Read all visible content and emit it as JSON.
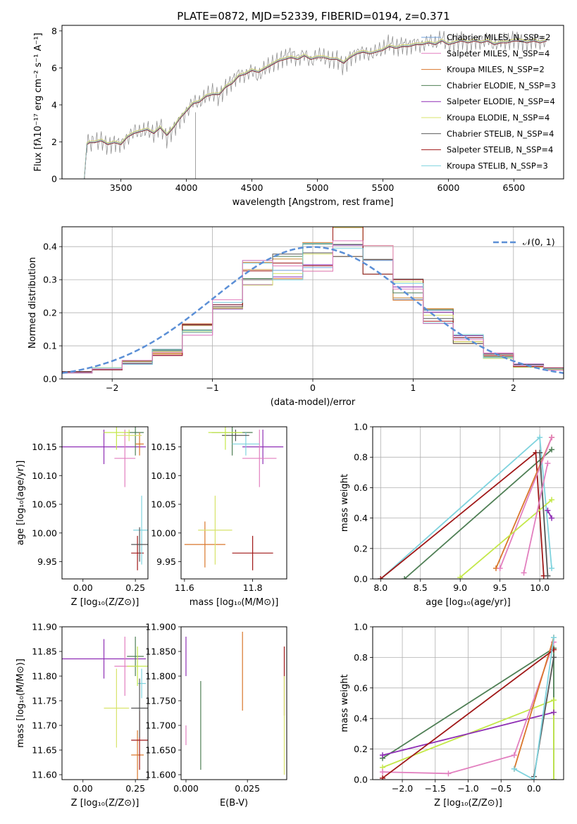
{
  "figure_title": "PLATE=0872, MJD=52339, FIBERID=0194, z=0.371",
  "model_colors": [
    "#6f9fd8",
    "#d9772b",
    "#c98a39",
    "#4f7f55",
    "#8f2fb5",
    "#d8e36b",
    "#555555",
    "#a01818",
    "#7fd3de",
    "#e27fbf",
    "#c4e84a"
  ],
  "chart_data": [
    {
      "type": "line",
      "title": "PLATE=0872, MJD=52339, FIBERID=0194, z=0.371",
      "xlabel": "wavelength [Angstrom, rest frame]",
      "ylabel": "Flux [fλ10⁻¹⁷ erg cm⁻² s⁻¹ A⁻¹]",
      "xlim": [
        3050,
        6880
      ],
      "ylim": [
        0,
        8.3
      ],
      "xticks": [
        3500,
        4000,
        4500,
        5000,
        5500,
        6000,
        6500
      ],
      "yticks": [
        0,
        2,
        4,
        6,
        8
      ],
      "legend": "top-right",
      "legend_entries": [
        "Chabrier MILES, N_SSP=2",
        "Salpeter MILES, N_SSP=4",
        "Kroupa MILES, N_SSP=2",
        "Chabrier ELODIE, N_SSP=3",
        "Salpeter ELODIE, N_SSP=4",
        "Kroupa ELODIE, N_SSP=4",
        "Chabrier STELIB, N_SSP=4",
        "Salpeter STELIB, N_SSP=4",
        "Kroupa STELIB, N_SSP=3"
      ],
      "series": [
        {
          "name": "data",
          "x": [
            3220,
            3240,
            3260,
            3300,
            3350,
            3400,
            3450,
            3500,
            3550,
            3600,
            3650,
            3700,
            3750,
            3800,
            3850,
            3900,
            3950,
            4000,
            4050,
            4100,
            4150,
            4200,
            4250,
            4300,
            4350,
            4400,
            4450,
            4500,
            4550,
            4600,
            4650,
            4700,
            4750,
            4800,
            4850,
            4900,
            4950,
            5000,
            5050,
            5100,
            5150,
            5200,
            5250,
            5300,
            5350,
            5400,
            5450,
            5500,
            5550,
            5600,
            5650,
            5700,
            5750,
            5800,
            5850,
            5900,
            5950,
            6000,
            6050,
            6100,
            6150,
            6200,
            6250,
            6300,
            6350,
            6400,
            6450,
            6500,
            6550,
            6600,
            6650,
            6700,
            6750
          ],
          "y": [
            0,
            1.9,
            2.0,
            2.0,
            2.1,
            1.8,
            2.0,
            1.9,
            2.2,
            2.6,
            2.5,
            2.7,
            2.4,
            2.9,
            2.2,
            2.7,
            3.2,
            3.6,
            4.2,
            4.1,
            4.5,
            4.7,
            4.4,
            5.0,
            5.3,
            5.7,
            5.6,
            5.9,
            5.5,
            6.0,
            6.2,
            6.4,
            6.6,
            6.8,
            6.5,
            6.8,
            6.3,
            6.7,
            6.6,
            6.4,
            6.5,
            6.1,
            6.6,
            6.8,
            6.9,
            6.7,
            6.9,
            7.0,
            7.4,
            7.1,
            7.3,
            7.2,
            7.4,
            7.2,
            7.5,
            7.3,
            7.7,
            7.2,
            7.4,
            7.6,
            7.3,
            7.5,
            7.4,
            7.6,
            7.2,
            7.5,
            7.4,
            7.6,
            7.5,
            7.3,
            7.6,
            7.4,
            7.5
          ]
        },
        {
          "name": "model",
          "x": [
            3220,
            3240,
            3260,
            3300,
            3350,
            3400,
            3450,
            3500,
            3550,
            3600,
            3650,
            3700,
            3750,
            3800,
            3850,
            3900,
            3950,
            4000,
            4050,
            4100,
            4150,
            4200,
            4250,
            4300,
            4350,
            4400,
            4450,
            4500,
            4550,
            4600,
            4650,
            4700,
            4750,
            4800,
            4850,
            4900,
            4950,
            5000,
            5050,
            5100,
            5150,
            5200,
            5250,
            5300,
            5350,
            5400,
            5450,
            5500,
            5550,
            5600,
            5650,
            5700,
            5750,
            5800,
            5850,
            5900,
            5950,
            6000,
            6050,
            6100,
            6150,
            6200,
            6250,
            6300,
            6350,
            6400,
            6450,
            6500,
            6550,
            6600,
            6650,
            6700,
            6750
          ],
          "y": [
            0,
            1.9,
            2.0,
            2.0,
            2.1,
            1.9,
            2.0,
            1.9,
            2.3,
            2.5,
            2.6,
            2.7,
            2.5,
            2.8,
            2.4,
            2.8,
            3.3,
            3.7,
            4.1,
            4.2,
            4.5,
            4.6,
            4.6,
            5.0,
            5.2,
            5.6,
            5.7,
            5.9,
            5.8,
            6.0,
            6.2,
            6.4,
            6.5,
            6.6,
            6.5,
            6.7,
            6.5,
            6.6,
            6.6,
            6.5,
            6.5,
            6.3,
            6.6,
            6.8,
            6.9,
            6.8,
            6.9,
            7.0,
            7.2,
            7.1,
            7.2,
            7.2,
            7.3,
            7.3,
            7.4,
            7.3,
            7.5,
            7.3,
            7.4,
            7.5,
            7.4,
            7.5,
            7.4,
            7.5,
            7.3,
            7.4,
            7.4,
            7.5,
            7.5,
            7.4,
            7.5,
            7.4,
            7.5
          ]
        }
      ]
    },
    {
      "type": "line",
      "xlabel": "(data-model)/error",
      "ylabel": "Normed distribution",
      "xlim": [
        -2.5,
        2.5
      ],
      "ylim": [
        0,
        0.46
      ],
      "xticks": [
        -2,
        -1,
        0,
        1,
        2
      ],
      "yticks": [
        0.0,
        0.1,
        0.2,
        0.3,
        0.4
      ],
      "grid": true,
      "legend": "top-right",
      "legend_entries": [
        "𝒩(0, 1)"
      ],
      "series": [
        {
          "name": "𝒩(0, 1)",
          "x": [
            -2.5,
            -2.0,
            -1.5,
            -1.0,
            -0.5,
            0.0,
            0.5,
            1.0,
            1.5,
            2.0,
            2.5
          ],
          "y": [
            0.018,
            0.054,
            0.13,
            0.242,
            0.352,
            0.399,
            0.352,
            0.242,
            0.13,
            0.054,
            0.018
          ]
        },
        {
          "name": "histogram",
          "x": [
            -2.5,
            -2.2,
            -1.9,
            -1.6,
            -1.3,
            -1.0,
            -0.7,
            -0.4,
            -0.1,
            0.2,
            0.5,
            0.8,
            1.1,
            1.4,
            1.7,
            2.0,
            2.3
          ],
          "y": [
            0.02,
            0.03,
            0.05,
            0.08,
            0.15,
            0.24,
            0.32,
            0.34,
            0.37,
            0.42,
            0.36,
            0.27,
            0.19,
            0.12,
            0.07,
            0.04,
            0.03
          ]
        }
      ]
    },
    {
      "type": "scatter",
      "xlabel": "Z [log₁₀(Z/Z⊙)]",
      "ylabel": "age  [log₁₀(age/yr)]",
      "xlim": [
        -0.1,
        0.31
      ],
      "ylim": [
        9.92,
        10.185
      ],
      "xticks": [
        0.0,
        0.25
      ],
      "yticks": [
        9.95,
        10.0,
        10.05,
        10.1,
        10.15
      ],
      "series": [
        {
          "name": "points",
          "x": [
            0.1,
            0.2,
            0.25,
            0.27,
            0.26,
            0.22,
            0.28,
            0.27,
            0.16
          ],
          "y": [
            10.15,
            10.13,
            10.175,
            10.155,
            9.965,
            10.17,
            10.005,
            9.98,
            10.175
          ],
          "xerr": [
            0.2,
            0.05,
            0.04,
            0.02,
            0.03,
            0.06,
            0.04,
            0.04,
            0.06
          ],
          "yerr": [
            0.03,
            0.05,
            0.04,
            0.02,
            0.03,
            0.01,
            0.06,
            0.03,
            0.03
          ]
        }
      ]
    },
    {
      "type": "scatter",
      "xlabel": "mass [log₁₀(M/M⊙)]",
      "xlim": [
        11.59,
        11.9
      ],
      "ylim": [
        9.92,
        10.185
      ],
      "xticks": [
        11.6,
        11.8
      ],
      "yticks": [
        9.95,
        10.0,
        10.05,
        10.1,
        10.15
      ],
      "series": [
        {
          "name": "points",
          "x": [
            11.83,
            11.82,
            11.74,
            11.66,
            11.8,
            11.69,
            11.78,
            11.75,
            11.72
          ],
          "y": [
            10.15,
            10.13,
            10.175,
            9.98,
            9.965,
            10.005,
            10.155,
            10.17,
            10.175
          ],
          "xerr": [
            0.06,
            0.05,
            0.06,
            0.06,
            0.06,
            0.05,
            0.04,
            0.04,
            0.05
          ],
          "yerr": [
            0.03,
            0.05,
            0.04,
            0.04,
            0.03,
            0.06,
            0.02,
            0.01,
            0.03
          ]
        }
      ]
    },
    {
      "type": "line",
      "xlabel": "age  [log₁₀(age/yr)]",
      "ylabel": "mass weight",
      "xlim": [
        7.9,
        10.3
      ],
      "ylim": [
        0,
        1.0
      ],
      "xticks": [
        8.0,
        8.5,
        9.0,
        9.5,
        10.0
      ],
      "yticks": [
        0.0,
        0.2,
        0.4,
        0.6,
        0.8,
        1.0
      ],
      "grid": true,
      "series": [
        {
          "name": "Kroupa STELIB",
          "x": [
            8.0,
            10.0,
            10.15
          ],
          "y": [
            0.0,
            0.93,
            0.07
          ]
        },
        {
          "name": "Chabrier ELODIE",
          "x": [
            8.3,
            10.15
          ],
          "y": [
            0.0,
            0.85
          ]
        },
        {
          "name": "Salpeter STELIB",
          "x": [
            8.0,
            9.95,
            10.05
          ],
          "y": [
            0.0,
            0.83,
            0.02
          ]
        },
        {
          "name": "Kroupa MILES",
          "x": [
            9.45,
            10.15
          ],
          "y": [
            0.07,
            0.93
          ]
        },
        {
          "name": "Salpeter MILES",
          "x": [
            9.5,
            10.15
          ],
          "y": [
            0.07,
            0.93
          ]
        },
        {
          "name": "Kroupa ELODIE",
          "x": [
            9.0,
            10.15
          ],
          "y": [
            0.01,
            0.52
          ]
        },
        {
          "name": "Salpeter ELODIE",
          "x": [
            10.1,
            10.15
          ],
          "y": [
            0.45,
            0.4
          ]
        },
        {
          "name": "Chabrier STELIB",
          "x": [
            10.0,
            10.1
          ],
          "y": [
            0.83,
            0.02
          ]
        },
        {
          "name": "Chabrier MILES",
          "x": [
            9.8,
            10.1
          ],
          "y": [
            0.04,
            0.76
          ]
        }
      ]
    },
    {
      "type": "scatter",
      "xlabel": "Z [log₁₀(Z/Z⊙)]",
      "ylabel": "mass [log₁₀(M/M⊙)]",
      "xlim": [
        -0.1,
        0.31
      ],
      "ylim": [
        11.59,
        11.9
      ],
      "xticks": [
        0.0,
        0.25
      ],
      "yticks": [
        11.6,
        11.65,
        11.7,
        11.75,
        11.8,
        11.85,
        11.9
      ],
      "series": [
        {
          "name": "points",
          "x": [
            0.1,
            0.2,
            0.25,
            0.26,
            0.27,
            0.16,
            0.28,
            0.27,
            0.26
          ],
          "y": [
            11.835,
            11.82,
            11.84,
            11.64,
            11.67,
            11.735,
            11.785,
            11.735,
            11.82
          ],
          "xerr": [
            0.2,
            0.05,
            0.04,
            0.03,
            0.04,
            0.06,
            0.02,
            0.04,
            0.05
          ],
          "yerr": [
            0.04,
            0.06,
            0.04,
            0.05,
            0.06,
            0.08,
            0.03,
            0.06,
            0.04
          ]
        }
      ]
    },
    {
      "type": "scatter",
      "xlabel": "E(B-V)",
      "xlim": [
        -0.002,
        0.041
      ],
      "ylim": [
        11.59,
        11.9
      ],
      "xticks": [
        0.0,
        0.025
      ],
      "yticks": [
        11.6,
        11.65,
        11.7,
        11.75,
        11.8,
        11.85,
        11.9
      ],
      "series": [
        {
          "name": "points",
          "x": [
            0.0,
            0.0,
            0.006,
            0.023,
            0.04,
            0.04
          ],
          "y": [
            11.84,
            11.68,
            11.7,
            11.81,
            11.79,
            11.7
          ],
          "yerr": [
            0.04,
            0.02,
            0.09,
            0.08,
            0.07,
            0.1
          ]
        }
      ]
    },
    {
      "type": "line",
      "xlabel": "Z [log₁₀(Z/Z⊙)]",
      "ylabel": "mass weight",
      "xlim": [
        -2.45,
        0.45
      ],
      "ylim": [
        0,
        1.0
      ],
      "xticks": [
        -2.0,
        -1.5,
        -1.0,
        -0.5,
        0.0
      ],
      "yticks": [
        0.0,
        0.2,
        0.4,
        0.6,
        0.8,
        1.0
      ],
      "grid": true,
      "series": [
        {
          "name": "Chabrier ELODIE",
          "x": [
            -2.3,
            0.3,
            0.3
          ],
          "y": [
            0.14,
            0.86,
            0.0
          ]
        },
        {
          "name": "Kroupa ELODIE",
          "x": [
            -2.3,
            0.3,
            0.3
          ],
          "y": [
            0.08,
            0.52,
            0.0
          ]
        },
        {
          "name": "Salpeter ELODIE",
          "x": [
            -2.3,
            0.3
          ],
          "y": [
            0.16,
            0.44
          ]
        },
        {
          "name": "Salpeter MILES",
          "x": [
            -2.3,
            -1.3,
            -0.3,
            0.3
          ],
          "y": [
            0.05,
            0.04,
            0.16,
            0.9
          ]
        },
        {
          "name": "Kroupa MILES",
          "x": [
            -0.3,
            0.3
          ],
          "y": [
            0.07,
            0.93
          ]
        },
        {
          "name": "Salpeter STELIB",
          "x": [
            -2.3,
            0.3
          ],
          "y": [
            0.01,
            0.85
          ]
        },
        {
          "name": "Chabrier STELIB",
          "x": [
            0.0,
            0.3
          ],
          "y": [
            0.02,
            0.8
          ]
        },
        {
          "name": "Kroupa STELIB",
          "x": [
            -0.3,
            0.0,
            0.3
          ],
          "y": [
            0.07,
            0.0,
            0.93
          ]
        }
      ]
    }
  ]
}
